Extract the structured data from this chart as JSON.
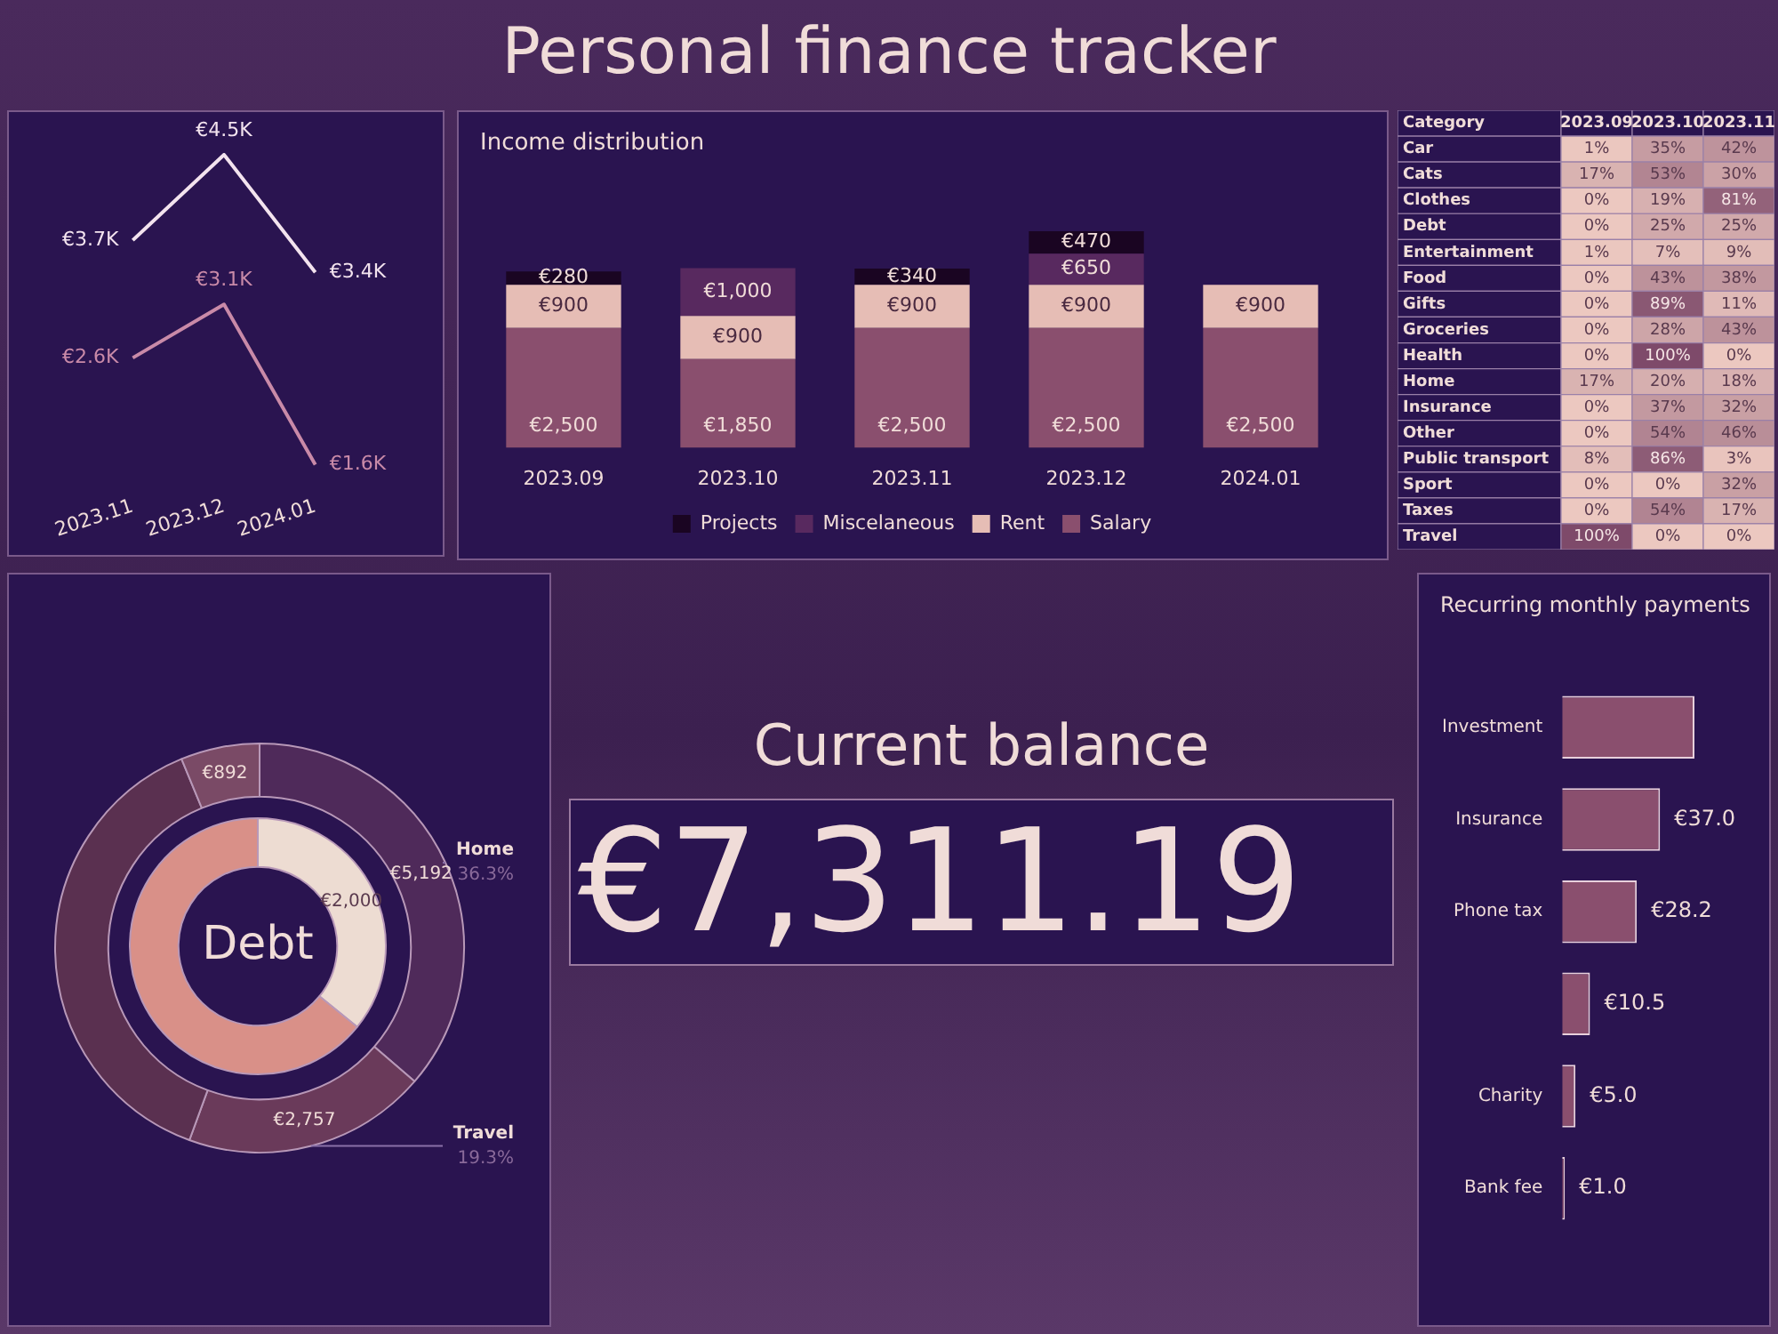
{
  "chart_data": [
    {
      "type": "other",
      "title": "Personal finance tracker"
    },
    {
      "type": "line",
      "categories": [
        "2023.11",
        "2023.12",
        "2024.01"
      ],
      "tick_labels": "x",
      "marker": "none",
      "series": [
        {
          "color": "#f3e3ee",
          "values": [
            3.7,
            4.5,
            3.4
          ],
          "value_labels": [
            "€3.7K",
            "€4.5K",
            "€3.4K"
          ]
        },
        {
          "color": "#c98aa8",
          "values": [
            2.6,
            3.1,
            1.6
          ],
          "value_labels": [
            "€2.6K",
            "€3.1K",
            "€1.6K"
          ]
        }
      ]
    },
    {
      "type": "bar",
      "title": "Income distribution",
      "stacked": true,
      "categories": [
        "2023.09",
        "2023.10",
        "2023.11",
        "2023.12",
        "2024.01"
      ],
      "tick_labels": "x",
      "legend": "bottom",
      "series": [
        {
          "name": "Salary",
          "color": "#8a4f6e",
          "values": [
            2500,
            1850,
            2500,
            2500,
            2500
          ],
          "value_labels": [
            "€2,500",
            "€1,850",
            "€2,500",
            "€2,500",
            "€2,500"
          ]
        },
        {
          "name": "Rent",
          "color": "#e6bdb5",
          "values": [
            900,
            900,
            900,
            900,
            900
          ],
          "value_labels": [
            "€900",
            "€900",
            "€900",
            "€900",
            "€900"
          ]
        },
        {
          "name": "Miscelaneous",
          "color": "#58295f",
          "values": [
            null,
            1000,
            null,
            650,
            null
          ],
          "value_labels": [
            null,
            "€1,000",
            null,
            "€650",
            null
          ]
        },
        {
          "name": "Projects",
          "color": "#1a0522",
          "values": [
            280,
            null,
            340,
            470,
            null
          ],
          "value_labels": [
            "€280",
            null,
            "€340",
            "€470",
            null
          ]
        }
      ]
    },
    {
      "type": "heatmap",
      "ylabel": "Category",
      "categories": [
        "2023.09",
        "2023.10",
        "2023.11"
      ],
      "y_categories": [
        "Car",
        "Cats",
        "Clothes",
        "Debt",
        "Entertainment",
        "Food",
        "Gifts",
        "Groceries",
        "Health",
        "Home",
        "Insurance",
        "Other",
        "Public transport",
        "Sport",
        "Taxes",
        "Travel"
      ],
      "cells": [
        [
          1,
          35,
          42
        ],
        [
          17,
          53,
          30
        ],
        [
          0,
          19,
          81
        ],
        [
          0,
          25,
          25
        ],
        [
          1,
          7,
          9
        ],
        [
          0,
          43,
          38
        ],
        [
          0,
          89,
          11
        ],
        [
          0,
          28,
          43
        ],
        [
          0,
          100,
          0
        ],
        [
          17,
          20,
          18
        ],
        [
          0,
          37,
          32
        ],
        [
          0,
          54,
          46
        ],
        [
          8,
          86,
          3
        ],
        [
          0,
          0,
          32
        ],
        [
          0,
          54,
          17
        ],
        [
          100,
          0,
          0
        ]
      ],
      "cell_labels": [
        [
          "1%",
          "35%",
          "42%"
        ],
        [
          "17%",
          "53%",
          "30%"
        ],
        [
          "0%",
          "19%",
          "81%"
        ],
        [
          "0%",
          "25%",
          "25%"
        ],
        [
          "1%",
          "7%",
          "9%"
        ],
        [
          "0%",
          "43%",
          "38%"
        ],
        [
          "0%",
          "89%",
          "11%"
        ],
        [
          "0%",
          "28%",
          "43%"
        ],
        [
          "0%",
          "100%",
          "0%"
        ],
        [
          "17%",
          "20%",
          "18%"
        ],
        [
          "0%",
          "37%",
          "32%"
        ],
        [
          "0%",
          "54%",
          "46%"
        ],
        [
          "8%",
          "86%",
          "3%"
        ],
        [
          "0%",
          "0%",
          "32%"
        ],
        [
          "0%",
          "54%",
          "17%"
        ],
        [
          "100%",
          "0%",
          "0%"
        ]
      ]
    },
    {
      "type": "donut",
      "annotations": [
        "36.3%",
        "19.3%"
      ],
      "categories": [
        "Home",
        "Travel",
        null,
        null
      ],
      "values": [
        5192,
        2757,
        5462,
        892
      ],
      "colors": [
        "#4f2a5a",
        "#6a3a5a",
        "#5a3050",
        "#7a4a66"
      ],
      "value_labels": [
        "€5,192",
        "€2,757",
        null,
        "€892"
      ]
    },
    {
      "type": "donut",
      "title": "Debt",
      "categories": [
        null,
        null
      ],
      "values": [
        2000,
        3580
      ],
      "colors": [
        "#eddcd2",
        "#d99088"
      ],
      "value_labels": [
        "€2,000",
        null
      ]
    },
    {
      "type": "other",
      "title": "Current balance",
      "annotations": [
        "€7,311.19"
      ]
    },
    {
      "type": "bar",
      "orientation": "horizontal",
      "title": "Recurring monthly payments",
      "categories": [
        "Investment",
        "Insurance",
        "Phone tax",
        null,
        "Charity",
        "Bank fee"
      ],
      "values": [
        50,
        37.0,
        28.2,
        10.5,
        5.0,
        1.0
      ],
      "value_labels": [
        null,
        "€37.0",
        "€28.2",
        "€10.5",
        "€5.0",
        "€1.0"
      ],
      "color": "#8a4f6e",
      "tick_labels": "y"
    }
  ]
}
